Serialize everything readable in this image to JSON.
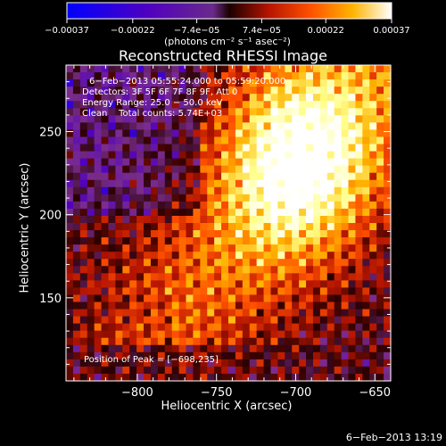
{
  "chart_data": {
    "type": "heatmap",
    "title": "Reconstructed RHESSI Image",
    "xlabel": "Heliocentric X (arcsec)",
    "ylabel": "Heliocentric Y (arcsec)",
    "xlim": [
      -845,
      -640
    ],
    "ylim": [
      100,
      290
    ],
    "x_ticks": [
      -800,
      -750,
      -700,
      -650
    ],
    "x_tick_labels": [
      "−800",
      "−750",
      "−700",
      "−650"
    ],
    "y_ticks": [
      150,
      200,
      250
    ],
    "y_tick_labels": [
      "150",
      "200",
      "250"
    ],
    "colorbar": {
      "range": [
        -0.00037,
        0.00037
      ],
      "ticks": [
        -0.00037,
        -0.00022,
        -7.4e-05,
        7.4e-05,
        0.00022,
        0.00037
      ],
      "tick_labels": [
        "−0.00037",
        "−0.00022",
        "−7.4e−05",
        "7.4e−05",
        "0.00022",
        "0.00037"
      ],
      "unit_label": "(photons cm⁻² s⁻¹ asec⁻²)",
      "colormap": [
        "#0000ff",
        "#5000c0",
        "#7b2d8e",
        "#2a0000",
        "#b41400",
        "#ff5000",
        "#ffb400",
        "#ffff8c",
        "#ffffff"
      ]
    },
    "annotations": [
      "6−Feb−2013 05:55:24.000 to 05:59:20.000",
      "Detectors: 3F 5F 6F 7F 8F 9F, Att 0",
      "Energy Range: 25.0 − 50.0 keV",
      "Clean    Total counts: 5.74E+03"
    ],
    "peak_label": "Position of Peak = [−698,235]",
    "peak_position": [
      -698,
      235
    ],
    "grid": false
  },
  "footer": {
    "timestamp": "6−Feb−2013 13:19"
  }
}
